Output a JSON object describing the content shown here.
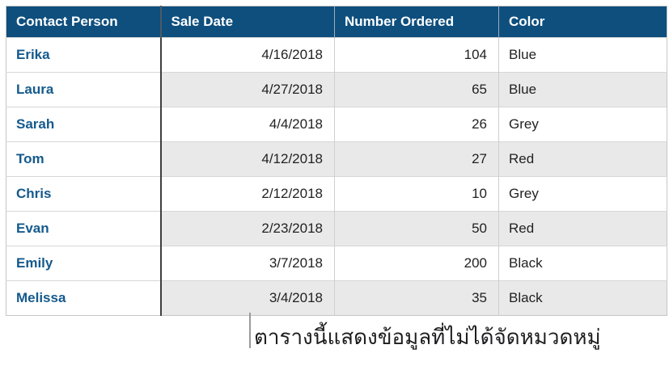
{
  "table": {
    "columns": [
      "Contact Person",
      "Sale Date",
      "Number Ordered",
      "Color"
    ],
    "rows": [
      {
        "person": "Erika",
        "date": "4/16/2018",
        "number": "104",
        "color": "Blue"
      },
      {
        "person": "Laura",
        "date": "4/27/2018",
        "number": "65",
        "color": "Blue"
      },
      {
        "person": "Sarah",
        "date": "4/4/2018",
        "number": "26",
        "color": "Grey"
      },
      {
        "person": "Tom",
        "date": "4/12/2018",
        "number": "27",
        "color": "Red"
      },
      {
        "person": "Chris",
        "date": "2/12/2018",
        "number": "10",
        "color": "Grey"
      },
      {
        "person": "Evan",
        "date": "2/23/2018",
        "number": "50",
        "color": "Red"
      },
      {
        "person": "Emily",
        "date": "3/7/2018",
        "number": "200",
        "color": "Black"
      },
      {
        "person": "Melissa",
        "date": "3/4/2018",
        "number": "35",
        "color": "Black"
      }
    ]
  },
  "caption": {
    "text": "ตารางนี้แสดงข้อมูลที่ไม่ได้จัดหมวดหมู่"
  },
  "colors": {
    "header_bg": "#0E4F7E",
    "header_text": "#FFFFFF",
    "row_header_text": "#155A8D",
    "cell_text": "#222222",
    "stripe": "#E9E9E9",
    "grid_light": "#CFCFCF",
    "grid_dark": "#3F3F3F",
    "callout_line": "#9B9B9B",
    "caption_text": "#1D1D1F"
  },
  "chart_data": {
    "type": "table",
    "columns": [
      "Contact Person",
      "Sale Date",
      "Number Ordered",
      "Color"
    ],
    "rows": [
      [
        "Erika",
        "4/16/2018",
        104,
        "Blue"
      ],
      [
        "Laura",
        "4/27/2018",
        65,
        "Blue"
      ],
      [
        "Sarah",
        "4/4/2018",
        26,
        "Grey"
      ],
      [
        "Tom",
        "4/12/2018",
        27,
        "Red"
      ],
      [
        "Chris",
        "2/12/2018",
        10,
        "Grey"
      ],
      [
        "Evan",
        "2/23/2018",
        50,
        "Red"
      ],
      [
        "Emily",
        "3/7/2018",
        200,
        "Black"
      ],
      [
        "Melissa",
        "3/4/2018",
        35,
        "Black"
      ]
    ],
    "caption": "ตารางนี้แสดงข้อมูลที่ไม่ได้จัดหมวดหมู่",
    "layout_hints": {
      "striped_rows": "even rows shaded grey except first column",
      "first_column_role": "row header, bold blue text",
      "header_row": "dark blue background, white bold text"
    }
  }
}
